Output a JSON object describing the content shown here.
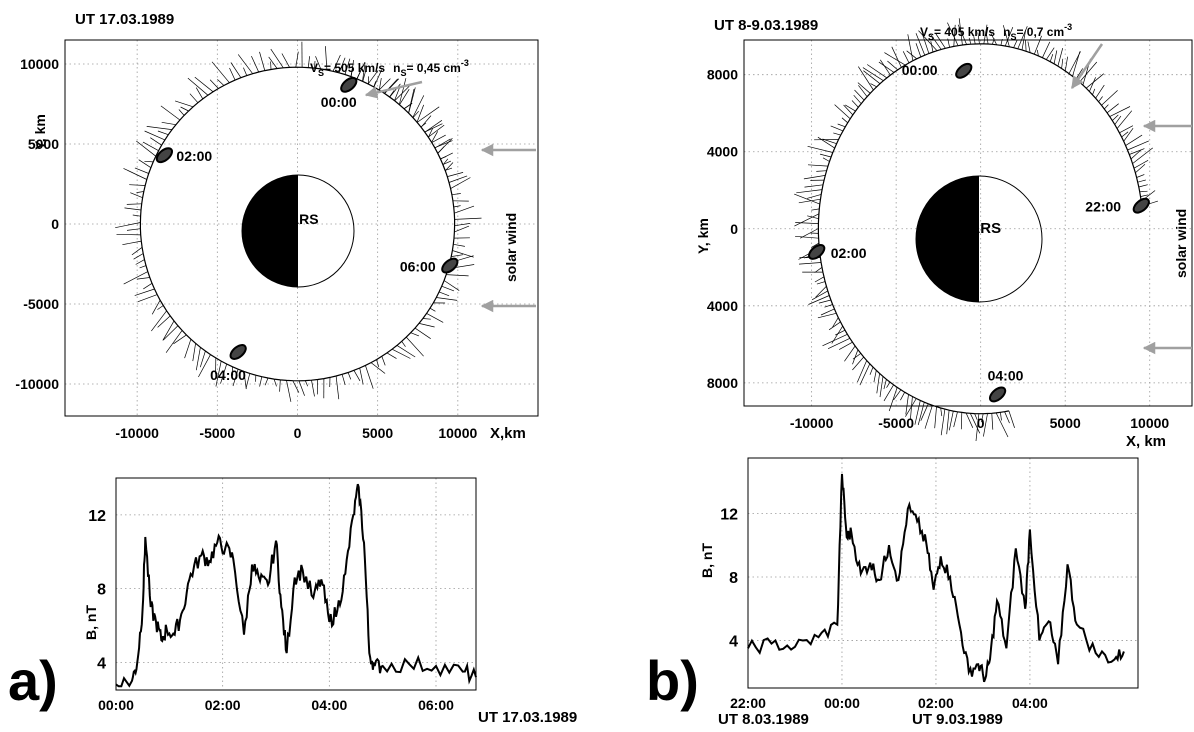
{
  "chart_data": [
    {
      "type": "line",
      "panel": "a)",
      "title": "UT 17.03.1989",
      "xlabel": "X,km",
      "ylabel": "Y, km",
      "xlim": [
        -14500,
        15000
      ],
      "ylim": [
        -12000,
        11500
      ],
      "x_ticks": [
        "-10000",
        "-5000",
        "0",
        "5000",
        "10000"
      ],
      "y_ticks": [
        "10000",
        "5000",
        "0",
        "-5000",
        "-10000"
      ],
      "grid": true,
      "planet_label": "MARS",
      "solar_wind_label": "solar wind",
      "upstream": {
        "vs": "V",
        "vs_sub": "S",
        "vs_value": "= 505 km/s",
        "ns": "n",
        "ns_sub": "S",
        "ns_value": "= 0,45 cm",
        "ns_exp": "-3"
      },
      "time_marks": [
        {
          "label": "00:00",
          "x": 3200,
          "y": 8700
        },
        {
          "label": "02:00",
          "x": -8300,
          "y": 4300
        },
        {
          "label": "04:00",
          "x": -3700,
          "y": -8000
        },
        {
          "label": "06:00",
          "x": 9500,
          "y": -2600
        }
      ],
      "orbit_arc": {
        "start_deg": 70,
        "end_deg": -340,
        "radius_km": 9800
      }
    },
    {
      "type": "line",
      "panel": "a)",
      "xlabel": "UT 17.03.1989",
      "ylabel": "B, nT",
      "x_ticks": [
        "00:00",
        "02:00",
        "04:00",
        "06:00"
      ],
      "y_ticks": [
        "4",
        "8",
        "12"
      ],
      "xlim": [
        0,
        6.75
      ],
      "ylim": [
        2.5,
        14
      ],
      "grid": true,
      "series": [
        {
          "x": [
            0,
            0.3,
            0.4,
            0.5,
            0.55,
            0.65,
            0.75,
            0.85,
            0.95,
            1.1,
            1.25,
            1.4,
            1.6,
            1.75,
            1.9,
            2.05,
            2.2,
            2.4,
            2.55,
            2.7,
            2.85,
            3.0,
            3.1,
            3.2,
            3.35,
            3.5,
            3.7,
            3.85,
            4.0,
            4.15,
            4.3,
            4.45,
            4.55,
            4.65,
            4.75,
            4.85,
            5.0,
            5.5,
            6.0,
            6.5,
            6.75
          ],
          "values": [
            2.8,
            3.0,
            4.0,
            7.0,
            10.8,
            7.0,
            6.2,
            5.2,
            5.8,
            5.5,
            6.8,
            8.8,
            9.8,
            9.5,
            10.5,
            10.2,
            9.6,
            5.5,
            9.3,
            8.4,
            8.2,
            10.6,
            7.0,
            4.5,
            8.6,
            9.0,
            7.5,
            8.5,
            6.2,
            6.8,
            8.8,
            12.0,
            13.5,
            10.5,
            4.5,
            3.8,
            3.8,
            3.9,
            3.8,
            3.5,
            3.2
          ]
        }
      ]
    },
    {
      "type": "line",
      "panel": "b)",
      "title": "UT 8-9.03.1989",
      "xlabel": "X, km",
      "ylabel": "Y, km",
      "xlim": [
        -14000,
        12500
      ],
      "ylim": [
        -9200,
        9800
      ],
      "x_ticks": [
        "-10000",
        "-5000",
        "0",
        "5000",
        "10000"
      ],
      "y_ticks": [
        "8000",
        "4000",
        "0",
        "4000",
        "8000"
      ],
      "grid": true,
      "planet_label": "MARS",
      "solar_wind_label": "solar wind",
      "upstream": {
        "vs": "V",
        "vs_sub": "S",
        "vs_value": "= 405 km/s",
        "ns": "n",
        "ns_sub": "S",
        "ns_value": "= 0,7 cm",
        "ns_exp": "-3"
      },
      "time_marks": [
        {
          "label": "00:00",
          "x": -1000,
          "y": 8200
        },
        {
          "label": "22:00",
          "x": 9500,
          "y": 1200
        },
        {
          "label": "02:00",
          "x": -9700,
          "y": -1200
        },
        {
          "label": "04:00",
          "x": 1000,
          "y": -8600
        }
      ],
      "orbit_arc": {
        "start_deg": 7,
        "end_deg": 280,
        "radius_km": 9600
      }
    },
    {
      "type": "line",
      "panel": "b)",
      "xlabel_left": "UT 8.03.1989",
      "xlabel_right": "UT 9.03.1989",
      "ylabel": "B, nT",
      "x_ticks": [
        "22:00",
        "00:00",
        "02:00",
        "04:00"
      ],
      "y_ticks": [
        "4",
        "8",
        "12"
      ],
      "xlim": [
        0,
        8.3
      ],
      "ylim": [
        1,
        15.5
      ],
      "grid": true,
      "series": [
        {
          "x": [
            0,
            0.5,
            1.0,
            1.5,
            1.9,
            2.0,
            2.1,
            2.2,
            2.4,
            2.6,
            2.8,
            3.0,
            3.2,
            3.4,
            3.6,
            3.8,
            3.95,
            4.1,
            4.3,
            4.5,
            4.7,
            4.9,
            5.05,
            5.15,
            5.3,
            5.5,
            5.7,
            5.9,
            6.0,
            6.2,
            6.4,
            6.6,
            6.8,
            7.0,
            7.4,
            7.8,
            8.0
          ],
          "values": [
            3.5,
            3.8,
            3.6,
            4.2,
            5.0,
            14.5,
            10.5,
            10.8,
            8.2,
            8.9,
            7.8,
            10.0,
            7.8,
            12.3,
            11.5,
            10.0,
            7.2,
            9.3,
            8.0,
            5.0,
            2.0,
            2.5,
            1.6,
            2.8,
            6.5,
            3.5,
            9.8,
            6.0,
            11.0,
            4.0,
            5.2,
            2.5,
            8.8,
            5.0,
            3.2,
            2.8,
            3.3
          ]
        }
      ]
    }
  ],
  "panel_labels": {
    "a": "a)",
    "b": "b)"
  }
}
